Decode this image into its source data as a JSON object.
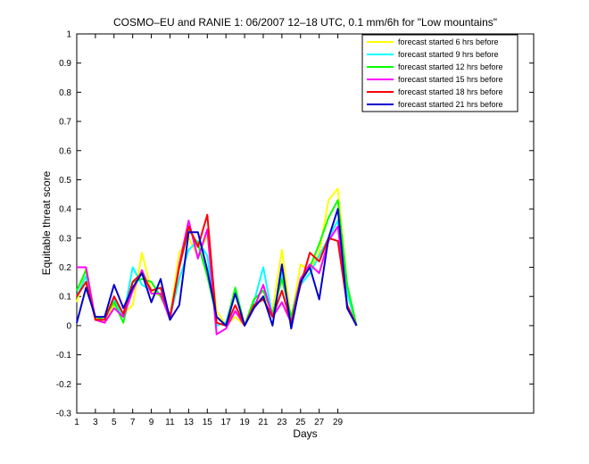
{
  "chart_data": {
    "type": "line",
    "title": "COSMO–EU and RANIE 1: 06/2007 12–18 UTC, 0.1 mm/6h for \"Low mountains\"",
    "xlabel": "Days",
    "ylabel": "Equitable threat score",
    "xlim": [
      1,
      50
    ],
    "ylim": [
      -0.3,
      1
    ],
    "x_ticks": [
      "1",
      "3",
      "5",
      "7",
      "9",
      "11",
      "13",
      "15",
      "17",
      "19",
      "21",
      "23",
      "25",
      "27",
      "29"
    ],
    "y_ticks": [
      "-0.3",
      "-0.2",
      "-0.1",
      "0",
      "0.1",
      "0.2",
      "0.3",
      "0.4",
      "0.5",
      "0.6",
      "0.7",
      "0.8",
      "0.9",
      "1"
    ],
    "grid": false,
    "legend_position": "top-right",
    "x": [
      1,
      2,
      3,
      4,
      5,
      6,
      7,
      8,
      9,
      10,
      11,
      12,
      13,
      14,
      15,
      16,
      17,
      18,
      19,
      20,
      21,
      22,
      23,
      24,
      25,
      26,
      27,
      28,
      29,
      30,
      31
    ],
    "series": [
      {
        "name": "forecast started 6 hrs before",
        "color": "#ffff00",
        "values": [
          0.08,
          0.2,
          0.03,
          0.01,
          0.07,
          0.04,
          0.07,
          0.25,
          0.12,
          0.1,
          0.03,
          0.25,
          0.3,
          0.24,
          0.31,
          0.05,
          0.0,
          0.03,
          0.0,
          0.07,
          0.1,
          0.05,
          0.26,
          0.02,
          0.21,
          0.19,
          0.25,
          0.43,
          0.47,
          0.14,
          0.0
        ]
      },
      {
        "name": "forecast started 9 hrs before",
        "color": "#00ffff",
        "values": [
          0.1,
          0.17,
          0.02,
          0.02,
          0.09,
          0.03,
          0.2,
          0.14,
          0.12,
          0.13,
          0.03,
          0.16,
          0.26,
          0.29,
          0.24,
          0.0,
          0.01,
          0.12,
          0.0,
          0.08,
          0.2,
          0.03,
          0.18,
          0.02,
          0.14,
          0.18,
          0.24,
          0.3,
          0.36,
          0.11,
          0.0
        ]
      },
      {
        "name": "forecast started 12 hrs before",
        "color": "#00ff00",
        "values": [
          0.12,
          0.19,
          0.02,
          0.03,
          0.08,
          0.01,
          0.15,
          0.16,
          0.15,
          0.1,
          0.03,
          0.2,
          0.33,
          0.28,
          0.17,
          0.03,
          0.0,
          0.13,
          0.0,
          0.09,
          0.12,
          0.04,
          0.16,
          0.03,
          0.16,
          0.2,
          0.28,
          0.37,
          0.43,
          0.14,
          0.0
        ]
      },
      {
        "name": "forecast started 15 hrs before",
        "color": "#ff00ff",
        "values": [
          0.2,
          0.2,
          0.02,
          0.01,
          0.06,
          0.03,
          0.12,
          0.19,
          0.11,
          0.11,
          0.02,
          0.21,
          0.36,
          0.23,
          0.33,
          -0.03,
          -0.01,
          0.05,
          0.0,
          0.06,
          0.14,
          0.03,
          0.08,
          0.01,
          0.16,
          0.21,
          0.18,
          0.29,
          0.34,
          0.07,
          0.0
        ]
      },
      {
        "name": "forecast started 18 hrs before",
        "color": "#ff0000",
        "values": [
          0.1,
          0.15,
          0.02,
          0.02,
          0.1,
          0.04,
          0.15,
          0.18,
          0.12,
          0.13,
          0.03,
          0.2,
          0.34,
          0.27,
          0.38,
          0.01,
          0.0,
          0.07,
          0.0,
          0.07,
          0.09,
          0.03,
          0.12,
          0.01,
          0.14,
          0.25,
          0.22,
          0.3,
          0.29,
          0.07,
          0.0
        ]
      },
      {
        "name": "forecast started 21 hrs before",
        "color": "#0000cc",
        "values": [
          0.01,
          0.13,
          0.03,
          0.03,
          0.14,
          0.06,
          0.13,
          0.18,
          0.08,
          0.16,
          0.02,
          0.07,
          0.32,
          0.32,
          0.19,
          0.03,
          0.0,
          0.11,
          0.0,
          0.06,
          0.1,
          0.0,
          0.21,
          -0.01,
          0.15,
          0.2,
          0.09,
          0.3,
          0.4,
          0.06,
          0.0
        ]
      }
    ]
  }
}
